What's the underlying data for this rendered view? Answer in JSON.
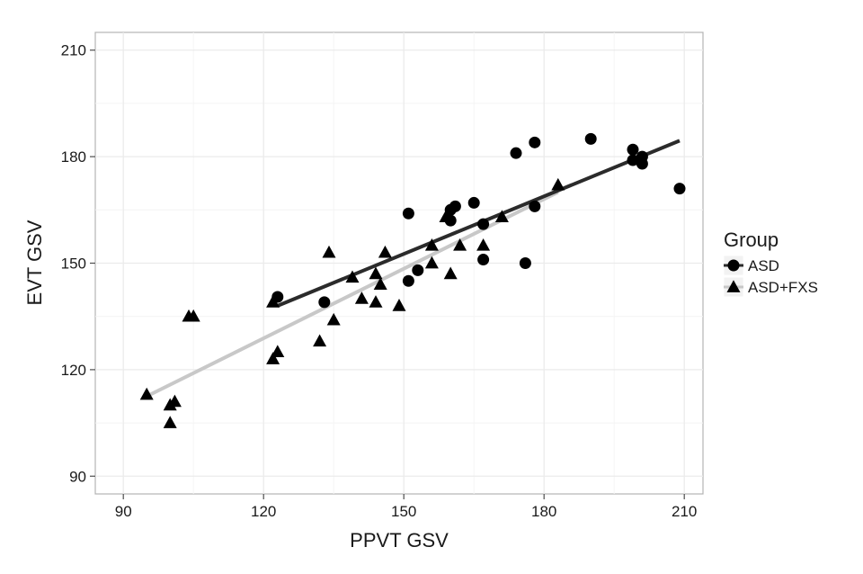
{
  "chart_data": {
    "type": "scatter",
    "title": "",
    "xlabel": "PPVT GSV",
    "ylabel": "EVT GSV",
    "xlim": [
      84,
      214
    ],
    "ylim": [
      85,
      215
    ],
    "xticks": [
      90,
      120,
      150,
      180,
      210
    ],
    "yticks": [
      90,
      120,
      150,
      180,
      210
    ],
    "xtick_labels": [
      "90",
      "120",
      "150",
      "180",
      "210"
    ],
    "ytick_labels": [
      "90",
      "120",
      "150",
      "180",
      "210"
    ],
    "grid": true,
    "legend": {
      "title": "Group",
      "position": "right"
    },
    "series": [
      {
        "name": "ASD",
        "marker": "circle",
        "color": "#000000",
        "line_color": "#2b2b2b",
        "trend": {
          "x": [
            123,
            209
          ],
          "y": [
            138,
            184.5
          ]
        },
        "points": [
          [
            123,
            140.5
          ],
          [
            133,
            139
          ],
          [
            151,
            164
          ],
          [
            151,
            145
          ],
          [
            153,
            148
          ],
          [
            160,
            162
          ],
          [
            160,
            165
          ],
          [
            161,
            166
          ],
          [
            165,
            167
          ],
          [
            167,
            161
          ],
          [
            167,
            151
          ],
          [
            174,
            181
          ],
          [
            176,
            150
          ],
          [
            178,
            184
          ],
          [
            178,
            166
          ],
          [
            190,
            185
          ],
          [
            199,
            182
          ],
          [
            199,
            179
          ],
          [
            201,
            180
          ],
          [
            201,
            178
          ],
          [
            209,
            171
          ]
        ]
      },
      {
        "name": "ASD+FXS",
        "marker": "triangle",
        "color": "#000000",
        "line_color": "#c8c8c8",
        "trend": {
          "x": [
            95,
            183
          ],
          "y": [
            112.5,
            170
          ]
        },
        "points": [
          [
            95,
            113
          ],
          [
            100,
            110
          ],
          [
            101,
            111
          ],
          [
            100,
            105
          ],
          [
            104,
            135
          ],
          [
            105,
            135
          ],
          [
            122,
            139
          ],
          [
            122,
            123
          ],
          [
            123,
            125
          ],
          [
            132,
            128
          ],
          [
            134,
            153
          ],
          [
            135,
            134
          ],
          [
            139,
            146
          ],
          [
            141,
            140
          ],
          [
            144,
            147
          ],
          [
            144,
            139
          ],
          [
            145,
            144
          ],
          [
            146,
            153
          ],
          [
            149,
            138
          ],
          [
            156,
            155
          ],
          [
            156,
            150
          ],
          [
            159,
            163
          ],
          [
            160,
            147
          ],
          [
            162,
            155
          ],
          [
            167,
            155
          ],
          [
            171,
            163
          ],
          [
            183,
            172
          ]
        ]
      }
    ]
  }
}
